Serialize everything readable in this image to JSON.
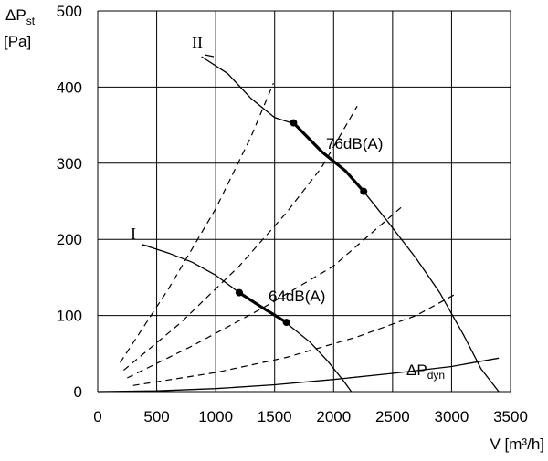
{
  "chart_data": {
    "type": "line",
    "xlabel": "V [m³/h]",
    "ylabel": "ΔPst [Pa]",
    "ylabel_parts": {
      "base": "ΔP",
      "sub": "st",
      "unit": "[Pa]"
    },
    "xlim": [
      0,
      3500
    ],
    "ylim": [
      0,
      500
    ],
    "x_ticks": [
      0,
      500,
      1000,
      1500,
      2000,
      2500,
      3000,
      3500
    ],
    "y_ticks": [
      0,
      100,
      200,
      300,
      400,
      500
    ],
    "x_tick_labels": [
      "0",
      "500",
      "1000",
      "1500",
      "2000",
      "2500",
      "3000",
      "3500"
    ],
    "y_tick_labels": [
      "0",
      "100",
      "200",
      "300",
      "400",
      "500"
    ],
    "grid": true,
    "series": [
      {
        "name": "I",
        "style": "solid",
        "points": [
          [
            380,
            193
          ],
          [
            600,
            182
          ],
          [
            800,
            170
          ],
          [
            1000,
            153
          ],
          [
            1200,
            130
          ],
          [
            1400,
            110
          ],
          [
            1600,
            90
          ],
          [
            1800,
            65
          ],
          [
            1950,
            40
          ],
          [
            2080,
            15
          ],
          [
            2150,
            0
          ]
        ]
      },
      {
        "name": "II",
        "style": "solid",
        "points": [
          [
            880,
            440
          ],
          [
            1100,
            418
          ],
          [
            1300,
            385
          ],
          [
            1500,
            360
          ],
          [
            1660,
            352
          ],
          [
            1900,
            315
          ],
          [
            2100,
            290
          ],
          [
            2255,
            263
          ],
          [
            2450,
            225
          ],
          [
            2700,
            175
          ],
          [
            2900,
            130
          ],
          [
            3100,
            75
          ],
          [
            3250,
            30
          ],
          [
            3400,
            0
          ]
        ]
      },
      {
        "name": "ΔPdyn",
        "style": "solid",
        "points": [
          [
            0,
            0
          ],
          [
            500,
            1
          ],
          [
            1000,
            4
          ],
          [
            1500,
            9
          ],
          [
            2000,
            16
          ],
          [
            2500,
            24
          ],
          [
            3000,
            33
          ],
          [
            3400,
            44
          ]
        ]
      }
    ],
    "dashed_lines": [
      {
        "points": [
          [
            190,
            38
          ],
          [
            600,
            135
          ],
          [
            1000,
            240
          ],
          [
            1300,
            335
          ],
          [
            1490,
            405
          ]
        ]
      },
      {
        "points": [
          [
            220,
            28
          ],
          [
            700,
            90
          ],
          [
            1200,
            165
          ],
          [
            1600,
            235
          ],
          [
            1900,
            295
          ],
          [
            2200,
            375
          ]
        ]
      },
      {
        "points": [
          [
            250,
            18
          ],
          [
            800,
            60
          ],
          [
            1400,
            110
          ],
          [
            2000,
            165
          ],
          [
            2580,
            243
          ]
        ]
      },
      {
        "points": [
          [
            300,
            8
          ],
          [
            1000,
            25
          ],
          [
            1600,
            45
          ],
          [
            2200,
            72
          ],
          [
            2700,
            100
          ],
          [
            3020,
            127
          ]
        ]
      }
    ],
    "operating_points": [
      {
        "label": "64dB(A)",
        "curve": "I",
        "points": [
          [
            1200,
            130
          ],
          [
            1600,
            91
          ]
        ]
      },
      {
        "label": "76dB(A)",
        "curve": "II",
        "points": [
          [
            1660,
            353
          ],
          [
            2255,
            263
          ]
        ]
      }
    ],
    "annotations": {
      "curve_I": "I",
      "curve_II": "II",
      "db_low": "64dB(A)",
      "db_high": "76dB(A)",
      "dyn_base": "ΔP",
      "dyn_sub": "dyn"
    }
  }
}
